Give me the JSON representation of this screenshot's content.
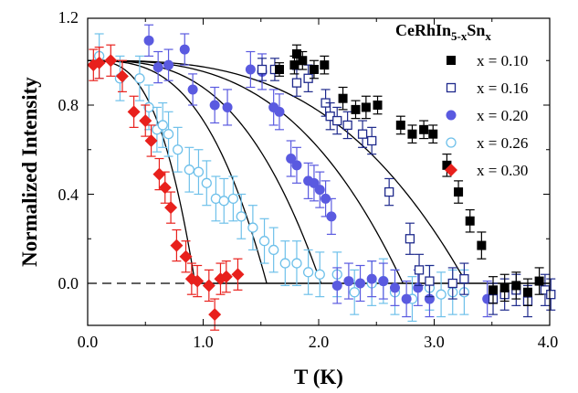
{
  "chart_data": {
    "type": "scatter",
    "xlabel": "T (K)",
    "ylabel": "Normalized Intensity",
    "xlim": [
      0.0,
      4.0
    ],
    "ylim": [
      -0.3,
      1.2
    ],
    "xticks": [
      "0.0",
      "1.0",
      "2.0",
      "3.0",
      "4.0"
    ],
    "yticks": [
      "0.0",
      "0.4",
      "0.8",
      "1.2"
    ],
    "legend": {
      "placement": "top-right",
      "title": {
        "main": "CeRhIn",
        "sub1": "5-x",
        "mid": "Sn",
        "sub2": "x"
      }
    },
    "series": [
      {
        "name": "x = 0.10",
        "color": "#000000",
        "marker": "square-filled",
        "Tc": 3.28,
        "points": [
          {
            "x": 1.66,
            "y": 0.96,
            "err": 0.03
          },
          {
            "x": 1.79,
            "y": 0.98,
            "err": 0.04
          },
          {
            "x": 1.81,
            "y": 1.03,
            "err": 0.04
          },
          {
            "x": 1.86,
            "y": 1.0,
            "err": 0.04
          },
          {
            "x": 1.96,
            "y": 0.96,
            "err": 0.04
          },
          {
            "x": 2.05,
            "y": 0.98,
            "err": 0.04
          },
          {
            "x": 2.21,
            "y": 0.83,
            "err": 0.05
          },
          {
            "x": 2.32,
            "y": 0.78,
            "err": 0.04
          },
          {
            "x": 2.41,
            "y": 0.79,
            "err": 0.05
          },
          {
            "x": 2.51,
            "y": 0.8,
            "err": 0.04
          },
          {
            "x": 2.71,
            "y": 0.71,
            "err": 0.04
          },
          {
            "x": 2.81,
            "y": 0.67,
            "err": 0.04
          },
          {
            "x": 2.91,
            "y": 0.69,
            "err": 0.04
          },
          {
            "x": 2.99,
            "y": 0.67,
            "err": 0.04
          },
          {
            "x": 3.11,
            "y": 0.53,
            "err": 0.05
          },
          {
            "x": 3.21,
            "y": 0.41,
            "err": 0.05
          },
          {
            "x": 3.31,
            "y": 0.28,
            "err": 0.05
          },
          {
            "x": 3.41,
            "y": 0.17,
            "err": 0.06
          },
          {
            "x": 3.51,
            "y": -0.03,
            "err": 0.06
          },
          {
            "x": 3.61,
            "y": -0.02,
            "err": 0.06
          },
          {
            "x": 3.71,
            "y": -0.01,
            "err": 0.06
          },
          {
            "x": 3.81,
            "y": -0.04,
            "err": 0.06
          },
          {
            "x": 3.91,
            "y": 0.01,
            "err": 0.06
          },
          {
            "x": 4.11,
            "y": 0.02,
            "err": 0.06
          }
        ]
      },
      {
        "name": "x = 0.16",
        "color": "#1f2a8c",
        "marker": "square-open",
        "Tc": 2.73,
        "points": [
          {
            "x": 1.51,
            "y": 0.96,
            "err": 0.05
          },
          {
            "x": 1.62,
            "y": 0.96,
            "err": 0.05
          },
          {
            "x": 1.81,
            "y": 0.9,
            "err": 0.06
          },
          {
            "x": 1.91,
            "y": 0.92,
            "err": 0.06
          },
          {
            "x": 2.06,
            "y": 0.81,
            "err": 0.06
          },
          {
            "x": 2.1,
            "y": 0.75,
            "err": 0.06
          },
          {
            "x": 2.16,
            "y": 0.73,
            "err": 0.06
          },
          {
            "x": 2.25,
            "y": 0.71,
            "err": 0.06
          },
          {
            "x": 2.38,
            "y": 0.67,
            "err": 0.06
          },
          {
            "x": 2.46,
            "y": 0.64,
            "err": 0.06
          },
          {
            "x": 2.61,
            "y": 0.41,
            "err": 0.06
          },
          {
            "x": 2.79,
            "y": 0.2,
            "err": 0.07
          },
          {
            "x": 2.87,
            "y": 0.06,
            "err": 0.07
          },
          {
            "x": 2.96,
            "y": 0.01,
            "err": 0.07
          },
          {
            "x": 3.16,
            "y": 0.0,
            "err": 0.07
          },
          {
            "x": 3.26,
            "y": 0.02,
            "err": 0.07
          },
          {
            "x": 3.51,
            "y": -0.07,
            "err": 0.07
          },
          {
            "x": 3.61,
            "y": -0.05,
            "err": 0.07
          },
          {
            "x": 3.71,
            "y": -0.03,
            "err": 0.07
          },
          {
            "x": 3.81,
            "y": -0.08,
            "err": 0.07
          },
          {
            "x": 3.96,
            "y": -0.03,
            "err": 0.07
          },
          {
            "x": 4.01,
            "y": -0.05,
            "err": 0.07
          }
        ]
      },
      {
        "name": "x = 0.20",
        "color": "#5a5ae0",
        "marker": "circle-filled",
        "Tc": 2.02,
        "points": [
          {
            "x": 0.53,
            "y": 1.09,
            "err": 0.07
          },
          {
            "x": 0.61,
            "y": 0.97,
            "err": 0.07
          },
          {
            "x": 0.7,
            "y": 0.98,
            "err": 0.07
          },
          {
            "x": 0.84,
            "y": 1.05,
            "err": 0.07
          },
          {
            "x": 0.91,
            "y": 0.87,
            "err": 0.07
          },
          {
            "x": 1.1,
            "y": 0.8,
            "err": 0.08
          },
          {
            "x": 1.21,
            "y": 0.79,
            "err": 0.08
          },
          {
            "x": 1.41,
            "y": 0.96,
            "err": 0.08
          },
          {
            "x": 1.51,
            "y": 0.95,
            "err": 0.08
          },
          {
            "x": 1.61,
            "y": 0.79,
            "err": 0.08
          },
          {
            "x": 1.66,
            "y": 0.77,
            "err": 0.08
          },
          {
            "x": 1.76,
            "y": 0.56,
            "err": 0.08
          },
          {
            "x": 1.81,
            "y": 0.53,
            "err": 0.08
          },
          {
            "x": 1.91,
            "y": 0.46,
            "err": 0.08
          },
          {
            "x": 1.96,
            "y": 0.45,
            "err": 0.08
          },
          {
            "x": 2.01,
            "y": 0.42,
            "err": 0.08
          },
          {
            "x": 2.06,
            "y": 0.38,
            "err": 0.08
          },
          {
            "x": 2.11,
            "y": 0.3,
            "err": 0.08
          },
          {
            "x": 2.16,
            "y": -0.01,
            "err": 0.08
          },
          {
            "x": 2.26,
            "y": 0.01,
            "err": 0.08
          },
          {
            "x": 2.36,
            "y": 0.0,
            "err": 0.08
          },
          {
            "x": 2.46,
            "y": 0.02,
            "err": 0.08
          },
          {
            "x": 2.56,
            "y": 0.01,
            "err": 0.08
          },
          {
            "x": 2.66,
            "y": -0.02,
            "err": 0.08
          },
          {
            "x": 2.76,
            "y": -0.07,
            "err": 0.08
          },
          {
            "x": 2.86,
            "y": -0.02,
            "err": 0.08
          },
          {
            "x": 2.96,
            "y": -0.07,
            "err": 0.08
          },
          {
            "x": 3.46,
            "y": -0.07,
            "err": 0.08
          }
        ]
      },
      {
        "name": "x = 0.26",
        "color": "#6ec0ea",
        "marker": "circle-open",
        "Tc": 1.55,
        "points": [
          {
            "x": 0.1,
            "y": 1.02,
            "err": 0.1
          },
          {
            "x": 0.28,
            "y": 0.92,
            "err": 0.1
          },
          {
            "x": 0.45,
            "y": 0.92,
            "err": 0.1
          },
          {
            "x": 0.53,
            "y": 0.79,
            "err": 0.1
          },
          {
            "x": 0.6,
            "y": 0.69,
            "err": 0.1
          },
          {
            "x": 0.65,
            "y": 0.71,
            "err": 0.1
          },
          {
            "x": 0.7,
            "y": 0.67,
            "err": 0.1
          },
          {
            "x": 0.78,
            "y": 0.6,
            "err": 0.1
          },
          {
            "x": 0.88,
            "y": 0.51,
            "err": 0.1
          },
          {
            "x": 0.96,
            "y": 0.5,
            "err": 0.1
          },
          {
            "x": 1.03,
            "y": 0.45,
            "err": 0.1
          },
          {
            "x": 1.11,
            "y": 0.38,
            "err": 0.1
          },
          {
            "x": 1.18,
            "y": 0.37,
            "err": 0.1
          },
          {
            "x": 1.26,
            "y": 0.38,
            "err": 0.1
          },
          {
            "x": 1.33,
            "y": 0.3,
            "err": 0.1
          },
          {
            "x": 1.43,
            "y": 0.25,
            "err": 0.1
          },
          {
            "x": 1.53,
            "y": 0.19,
            "err": 0.1
          },
          {
            "x": 1.61,
            "y": 0.15,
            "err": 0.1
          },
          {
            "x": 1.71,
            "y": 0.09,
            "err": 0.1
          },
          {
            "x": 1.81,
            "y": 0.09,
            "err": 0.1
          },
          {
            "x": 1.91,
            "y": 0.05,
            "err": 0.1
          },
          {
            "x": 2.01,
            "y": 0.04,
            "err": 0.1
          },
          {
            "x": 2.16,
            "y": 0.04,
            "err": 0.1
          },
          {
            "x": 2.31,
            "y": -0.04,
            "err": 0.1
          },
          {
            "x": 2.46,
            "y": 0.0,
            "err": 0.1
          },
          {
            "x": 2.56,
            "y": 0.01,
            "err": 0.1
          },
          {
            "x": 2.66,
            "y": -0.04,
            "err": 0.1
          },
          {
            "x": 2.81,
            "y": -0.07,
            "err": 0.1
          },
          {
            "x": 2.96,
            "y": -0.02,
            "err": 0.1
          },
          {
            "x": 3.06,
            "y": -0.05,
            "err": 0.1
          },
          {
            "x": 3.16,
            "y": -0.04,
            "err": 0.1
          },
          {
            "x": 3.26,
            "y": -0.04,
            "err": 0.1
          }
        ]
      },
      {
        "name": "x = 0.30",
        "color": "#e8201c",
        "marker": "diamond-filled",
        "Tc": 0.93,
        "points": [
          {
            "x": 0.05,
            "y": 0.98,
            "err": 0.07
          },
          {
            "x": 0.1,
            "y": 0.99,
            "err": 0.07
          },
          {
            "x": 0.2,
            "y": 1.0,
            "err": 0.07
          },
          {
            "x": 0.3,
            "y": 0.93,
            "err": 0.07
          },
          {
            "x": 0.4,
            "y": 0.77,
            "err": 0.07
          },
          {
            "x": 0.5,
            "y": 0.73,
            "err": 0.07
          },
          {
            "x": 0.55,
            "y": 0.64,
            "err": 0.07
          },
          {
            "x": 0.62,
            "y": 0.49,
            "err": 0.07
          },
          {
            "x": 0.67,
            "y": 0.43,
            "err": 0.07
          },
          {
            "x": 0.72,
            "y": 0.34,
            "err": 0.07
          },
          {
            "x": 0.77,
            "y": 0.17,
            "err": 0.07
          },
          {
            "x": 0.85,
            "y": 0.12,
            "err": 0.07
          },
          {
            "x": 0.9,
            "y": 0.02,
            "err": 0.07
          },
          {
            "x": 0.95,
            "y": 0.01,
            "err": 0.07
          },
          {
            "x": 1.05,
            "y": -0.01,
            "err": 0.07
          },
          {
            "x": 1.1,
            "y": -0.14,
            "err": 0.07
          },
          {
            "x": 1.15,
            "y": 0.02,
            "err": 0.07
          },
          {
            "x": 1.2,
            "y": 0.03,
            "err": 0.07
          },
          {
            "x": 1.3,
            "y": 0.04,
            "err": 0.07
          }
        ]
      }
    ]
  }
}
